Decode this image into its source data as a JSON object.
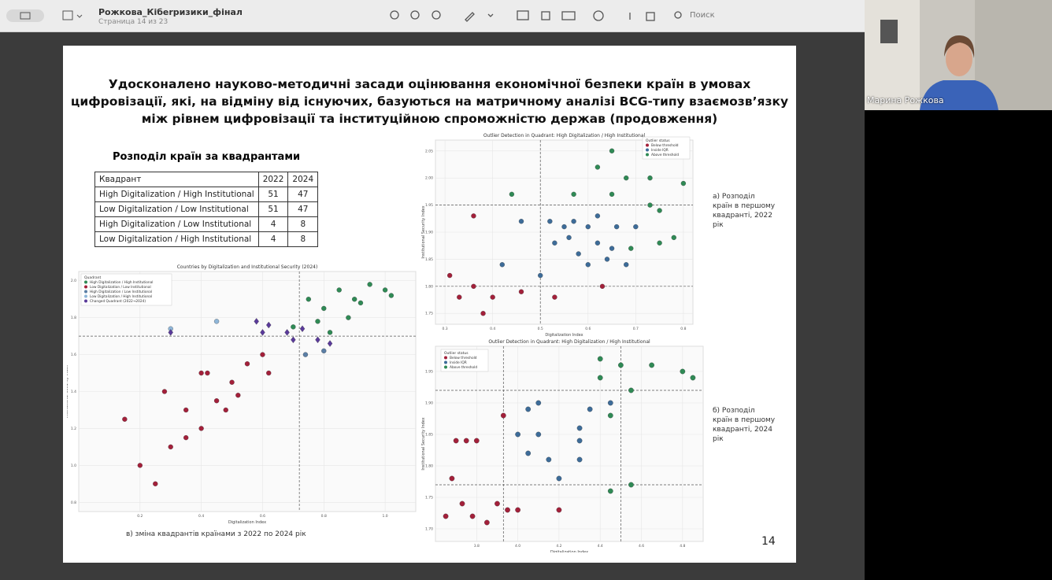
{
  "toolbar": {
    "doc_title": "Рожкова_Кібеrризики_фінал",
    "page_info": "Страница 14 из 23",
    "search": "Поиск"
  },
  "slide": {
    "heading": [
      "Удосконалено науково-методичні засади оцінювання економічної безпеки країн в умовах",
      "цифровізації, які, на відміну від існуючих, базуються на матричному аналізі BCG-типу взаємозв’язку",
      "між рівнем цифровізації та інституційною спроможністю держав  (продовження)"
    ],
    "table": {
      "title": "Розподіл країн за квадрантами",
      "header": [
        "Квадрант",
        "2022",
        "2024"
      ],
      "rows": [
        [
          "High Digitalization / High Institutional",
          51,
          47
        ],
        [
          "Low Digitalization / Low Institutional",
          51,
          47
        ],
        [
          "High Digitalization / Low Institutional",
          4,
          8
        ],
        [
          "Low Digitalization / High Institutional",
          4,
          8
        ]
      ]
    },
    "captions": {
      "a": "а) Розподіл країн в першому квадранті, 2022 рік",
      "b": "б) Розподіл країн в першому квадранті, 2024 рік",
      "c": "в) зміна квадрантів країнами з 2022 по 2024 рік"
    },
    "page_number": "14"
  },
  "chart_data": [
    {
      "type": "scatter",
      "title": "Outlier Detection in Quadrant: High Digitalization / High Institutional",
      "x_label": "Digitalization Index",
      "y_label": "Institutional Security Index",
      "legend_title": "Outlier status",
      "xlim": [
        0.28,
        0.82
      ],
      "xticks": [
        0.3,
        0.4,
        0.5,
        0.6,
        0.7,
        0.8
      ],
      "ylim": [
        1.73,
        2.07
      ],
      "yticks": [
        {
          "value": 1.75,
          "label": "1.75"
        },
        {
          "value": 1.8,
          "label": "1.80"
        },
        {
          "value": 1.85,
          "label": "1.85"
        },
        {
          "value": 1.9,
          "label": "1.90"
        },
        {
          "value": 1.95,
          "label": "1.95"
        },
        {
          "value": 2.0,
          "label": "2.00"
        },
        {
          "value": 2.05,
          "label": "2.05"
        }
      ],
      "xlines": [
        0.5
      ],
      "ylines": [
        1.8,
        1.95
      ],
      "grid": true,
      "series": [
        {
          "name": "Below threshold",
          "color": "#a3203a",
          "x": [
            0.31,
            0.36,
            0.33,
            0.4,
            0.46,
            0.38,
            0.53,
            0.63,
            0.36
          ],
          "values": [
            1.82,
            1.8,
            1.78,
            1.78,
            1.79,
            1.75,
            1.78,
            1.8,
            1.93
          ]
        },
        {
          "name": "Inside IQR",
          "color": "#3d6c99",
          "x": [
            0.46,
            0.52,
            0.55,
            0.57,
            0.6,
            0.62,
            0.66,
            0.7,
            0.53,
            0.56,
            0.62,
            0.58,
            0.65,
            0.6,
            0.64,
            0.68,
            0.42,
            0.5
          ],
          "values": [
            1.92,
            1.92,
            1.91,
            1.92,
            1.91,
            1.93,
            1.91,
            1.91,
            1.88,
            1.89,
            1.88,
            1.86,
            1.87,
            1.84,
            1.85,
            1.84,
            1.84,
            1.82
          ]
        },
        {
          "name": "Above threshold",
          "color": "#2f8a55",
          "x": [
            0.65,
            0.62,
            0.68,
            0.73,
            0.8,
            0.65,
            0.73,
            0.75,
            0.44,
            0.57,
            0.75,
            0.78,
            0.69
          ],
          "values": [
            2.05,
            2.02,
            2.0,
            2.0,
            1.99,
            1.97,
            1.95,
            1.94,
            1.97,
            1.97,
            1.88,
            1.89,
            1.87
          ]
        }
      ]
    },
    {
      "type": "scatter",
      "title": "Countries by Digitalization and Institutional Security (2024)",
      "x_label": "Digitalization Index",
      "y_label": "Institutional Security Index",
      "legend_title": "Quadrant",
      "xlim": [
        0.0,
        1.1
      ],
      "xticks": [
        0.2,
        0.4,
        0.6,
        0.8,
        {
          "value": 1.0,
          "label": "1.0"
        }
      ],
      "ylim": [
        0.75,
        2.05
      ],
      "yticks": [
        0.8,
        {
          "value": 1.0,
          "label": "1.0"
        },
        1.2,
        1.4,
        1.6,
        1.8,
        {
          "value": 2.0,
          "label": "2.0"
        }
      ],
      "xlines": [
        0.72
      ],
      "ylines": [
        1.7
      ],
      "grid": true,
      "series": [
        {
          "name": "High Digitalization / High Institutional",
          "color": "#2f8a55",
          "x": [
            0.75,
            0.8,
            0.85,
            0.9,
            0.95,
            1.0,
            0.78,
            0.88,
            0.82,
            0.92,
            1.02,
            0.7
          ],
          "values": [
            1.9,
            1.85,
            1.95,
            1.9,
            1.98,
            1.95,
            1.78,
            1.8,
            1.72,
            1.88,
            1.92,
            1.75
          ]
        },
        {
          "name": "Low Digitalization / Low Institutional",
          "color": "#a3203a",
          "x": [
            0.2,
            0.25,
            0.15,
            0.3,
            0.35,
            0.4,
            0.45,
            0.5,
            0.55,
            0.6,
            0.42,
            0.48,
            0.28,
            0.52,
            0.62,
            0.35,
            0.4
          ],
          "values": [
            1.0,
            0.9,
            1.25,
            1.1,
            1.3,
            1.2,
            1.35,
            1.45,
            1.55,
            1.6,
            1.5,
            1.3,
            1.4,
            1.38,
            1.5,
            1.15,
            1.5
          ]
        },
        {
          "name": "High Digitalization / Low Institutional",
          "color": "#5b7fa6",
          "x": [
            0.74,
            0.8
          ],
          "values": [
            1.6,
            1.62
          ]
        },
        {
          "name": "Low Digitalization / High Institutional",
          "color": "#8fb6d8",
          "x": [
            0.45,
            0.3
          ],
          "values": [
            1.78,
            1.74
          ]
        },
        {
          "name": "Changed Quadrant (2022→2024)",
          "color": "#5a3a9a",
          "marker": "diamond",
          "x": [
            0.58,
            0.62,
            0.68,
            0.73,
            0.78,
            0.82,
            0.7,
            0.6,
            0.3
          ],
          "values": [
            1.78,
            1.76,
            1.72,
            1.74,
            1.68,
            1.66,
            1.68,
            1.72,
            1.72
          ]
        }
      ]
    },
    {
      "type": "scatter",
      "title": "Outlier Detection in Quadrant: High Digitalization / High Institutional",
      "x_label": "Digitalization Index",
      "y_label": "Institutional Security Index",
      "legend_title": "Outlier status",
      "xlim": [
        3.6,
        4.9
      ],
      "xticks": [
        3.8,
        {
          "value": 4.0,
          "label": "4.0"
        },
        4.2,
        4.4,
        4.6,
        4.8
      ],
      "ylim": [
        1.68,
        1.99
      ],
      "yticks": [
        {
          "value": 1.7,
          "label": "1.70"
        },
        1.75,
        {
          "value": 1.8,
          "label": "1.80"
        },
        1.85,
        {
          "value": 1.9,
          "label": "1.90"
        },
        1.95
      ],
      "xlines": [
        3.93,
        4.5
      ],
      "ylines": [
        1.92,
        1.77
      ],
      "grid": true,
      "series": [
        {
          "name": "Below threshold",
          "color": "#a3203a",
          "x": [
            3.65,
            3.68,
            3.73,
            3.78,
            3.85,
            3.9,
            3.95,
            4.0,
            3.7,
            3.75,
            3.8,
            3.93,
            4.2
          ],
          "values": [
            1.72,
            1.78,
            1.74,
            1.72,
            1.71,
            1.74,
            1.73,
            1.73,
            1.84,
            1.84,
            1.84,
            1.88,
            1.73
          ]
        },
        {
          "name": "Inside IQR",
          "color": "#3d6c99",
          "x": [
            4.0,
            4.1,
            4.05,
            4.15,
            4.3,
            4.35,
            4.45,
            4.3,
            4.05,
            4.1,
            4.2,
            4.3
          ],
          "values": [
            1.85,
            1.85,
            1.82,
            1.81,
            1.84,
            1.89,
            1.9,
            1.86,
            1.89,
            1.9,
            1.78,
            1.81
          ]
        },
        {
          "name": "Above threshold",
          "color": "#2f8a55",
          "x": [
            4.4,
            4.5,
            4.65,
            4.8,
            4.85,
            4.4,
            4.55,
            4.45,
            4.55,
            4.45
          ],
          "values": [
            1.97,
            1.96,
            1.96,
            1.95,
            1.94,
            1.94,
            1.92,
            1.88,
            1.77,
            1.76
          ]
        }
      ]
    }
  ],
  "video": {
    "participant": "Марина Рожкова"
  }
}
